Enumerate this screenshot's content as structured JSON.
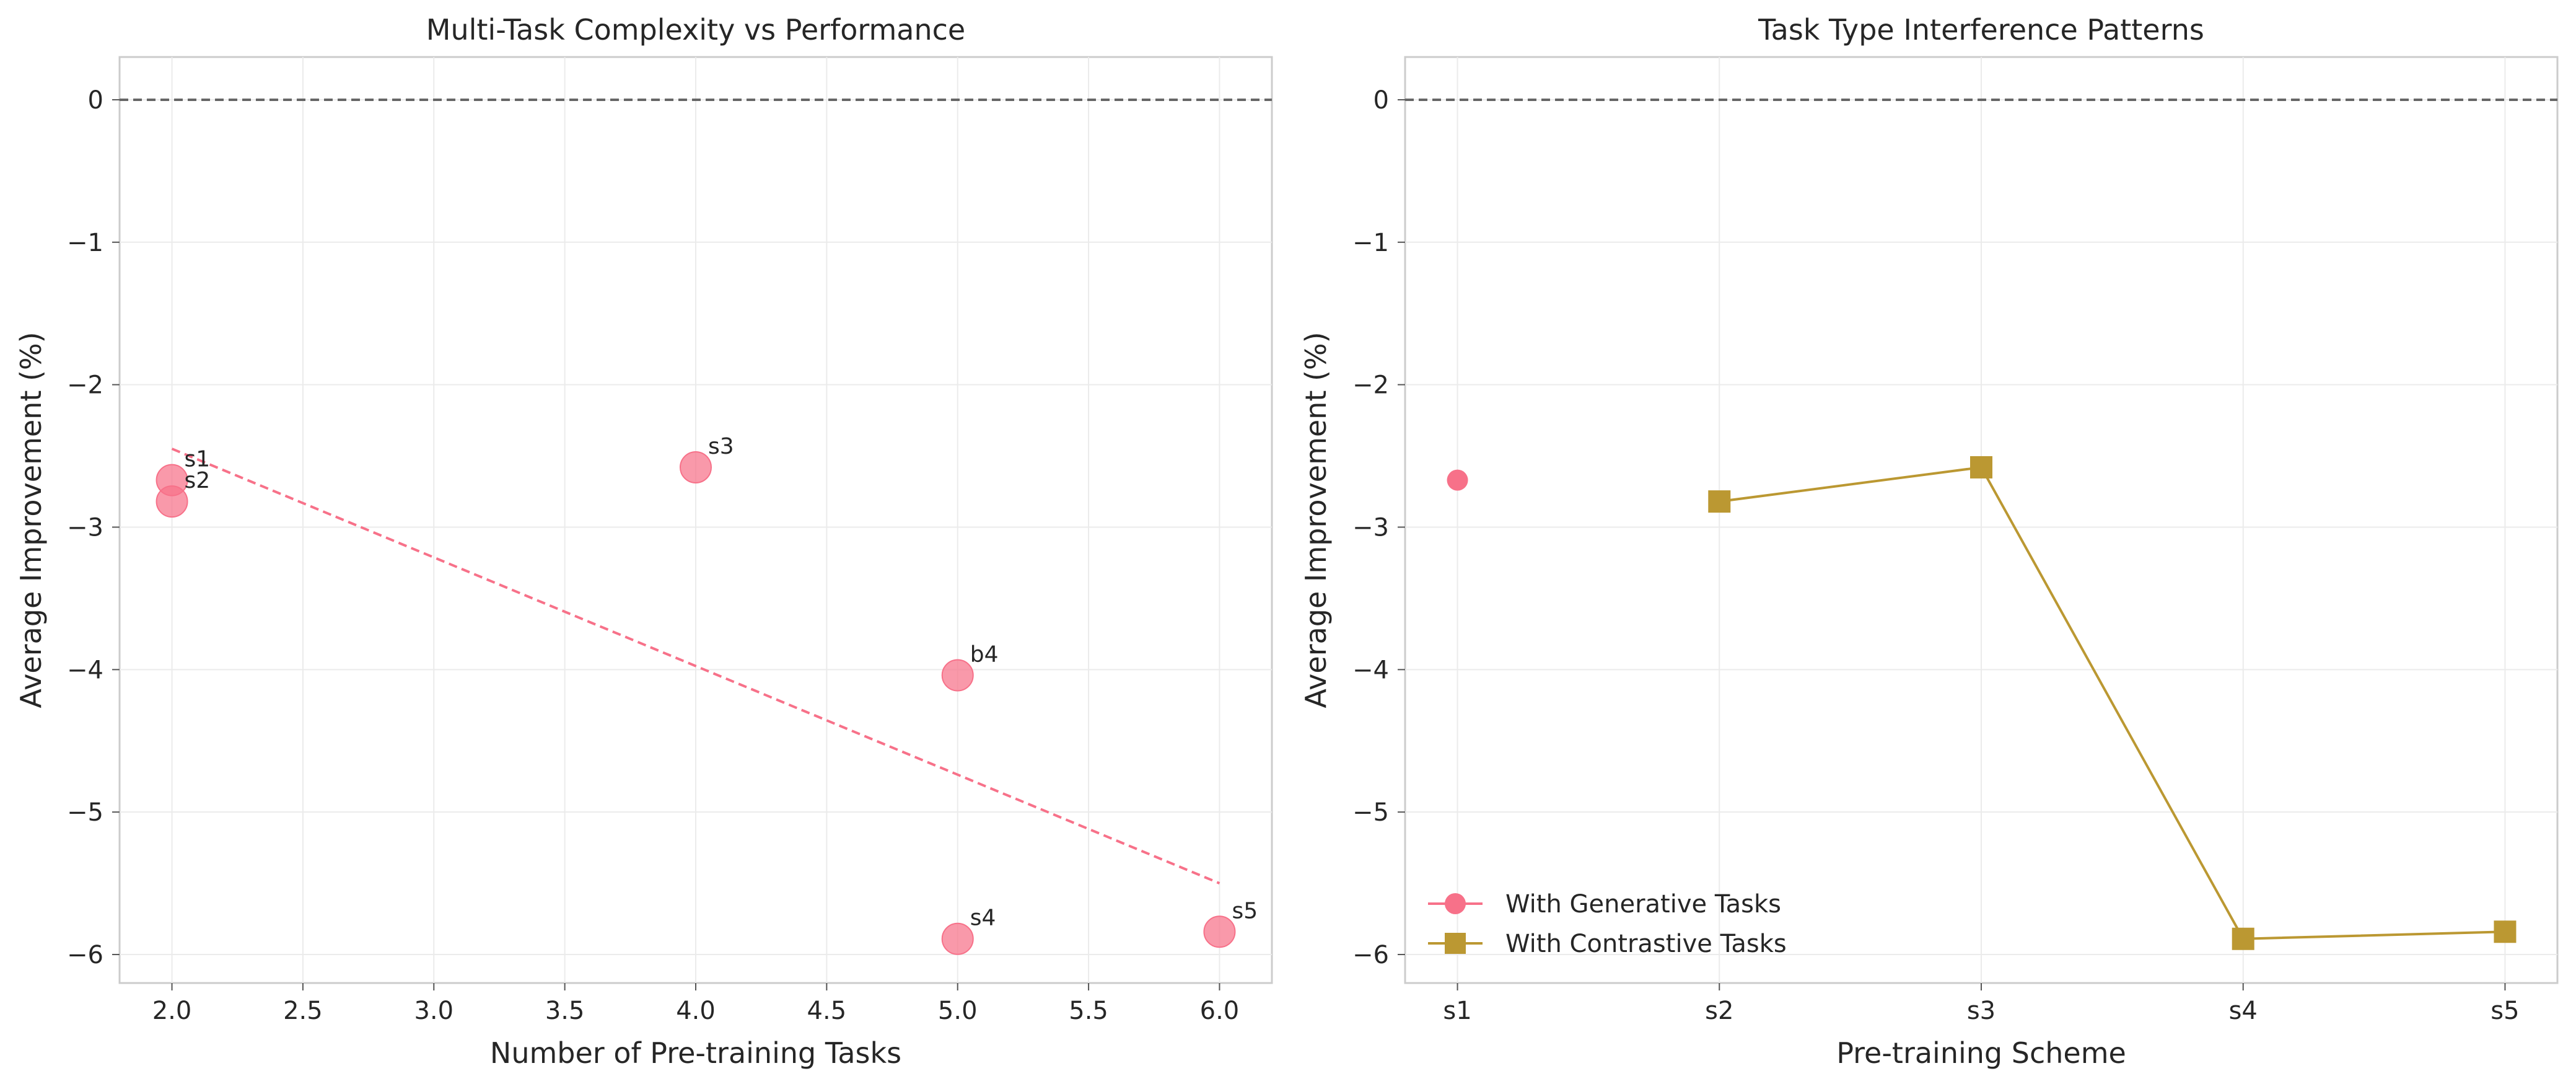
{
  "chart_data": [
    {
      "type": "scatter",
      "title": "Multi-Task Complexity vs Performance",
      "xlabel": "Number of Pre-training Tasks",
      "ylabel": "Average Improvement (%)",
      "xlim": [
        1.8,
        6.2
      ],
      "ylim": [
        -6.2,
        0.3
      ],
      "xticks": [
        2.0,
        2.5,
        3.0,
        3.5,
        4.0,
        4.5,
        5.0,
        5.5,
        6.0
      ],
      "xtick_labels": [
        "2.0",
        "2.5",
        "3.0",
        "3.5",
        "4.0",
        "4.5",
        "5.0",
        "5.5",
        "6.0"
      ],
      "yticks": [
        0,
        -1,
        -2,
        -3,
        -4,
        -5,
        -6
      ],
      "ytick_labels": [
        "0",
        "−1",
        "−2",
        "−3",
        "−4",
        "−5",
        "−6"
      ],
      "grid": true,
      "reference_line_y": 0,
      "points": [
        {
          "label": "s1",
          "x": 2,
          "y": -2.67
        },
        {
          "label": "s2",
          "x": 2,
          "y": -2.82
        },
        {
          "label": "s3",
          "x": 4,
          "y": -2.58
        },
        {
          "label": "b4",
          "x": 5,
          "y": -4.04
        },
        {
          "label": "s4",
          "x": 5,
          "y": -5.89
        },
        {
          "label": "s5",
          "x": 6,
          "y": -5.84
        }
      ],
      "trend_line": {
        "x": [
          2,
          6
        ],
        "y": [
          -2.45,
          -5.5
        ]
      },
      "colors": {
        "points": "#f77189",
        "trend": "#f77189"
      }
    },
    {
      "type": "line",
      "title": "Task Type Interference Patterns",
      "xlabel": "Pre-training Scheme",
      "ylabel": "Average Improvement (%)",
      "categories": [
        "s1",
        "s2",
        "s3",
        "s4",
        "s5"
      ],
      "ylim": [
        -6.2,
        0.3
      ],
      "yticks": [
        0,
        -1,
        -2,
        -3,
        -4,
        -5,
        -6
      ],
      "ytick_labels": [
        "0",
        "−1",
        "−2",
        "−3",
        "−4",
        "−5",
        "−6"
      ],
      "grid": true,
      "reference_line_y": 0,
      "legend_position": "lower-left",
      "series": [
        {
          "name": "With Generative Tasks",
          "marker": "circle",
          "color": "#f77189",
          "points": [
            {
              "x": "s1",
              "y": -2.67
            }
          ]
        },
        {
          "name": "With Contrastive Tasks",
          "marker": "square",
          "color": "#bb9832",
          "points": [
            {
              "x": "s2",
              "y": -2.82
            },
            {
              "x": "s3",
              "y": -2.58
            },
            {
              "x": "s4",
              "y": -5.89
            },
            {
              "x": "s5",
              "y": -5.84
            }
          ]
        }
      ]
    }
  ]
}
